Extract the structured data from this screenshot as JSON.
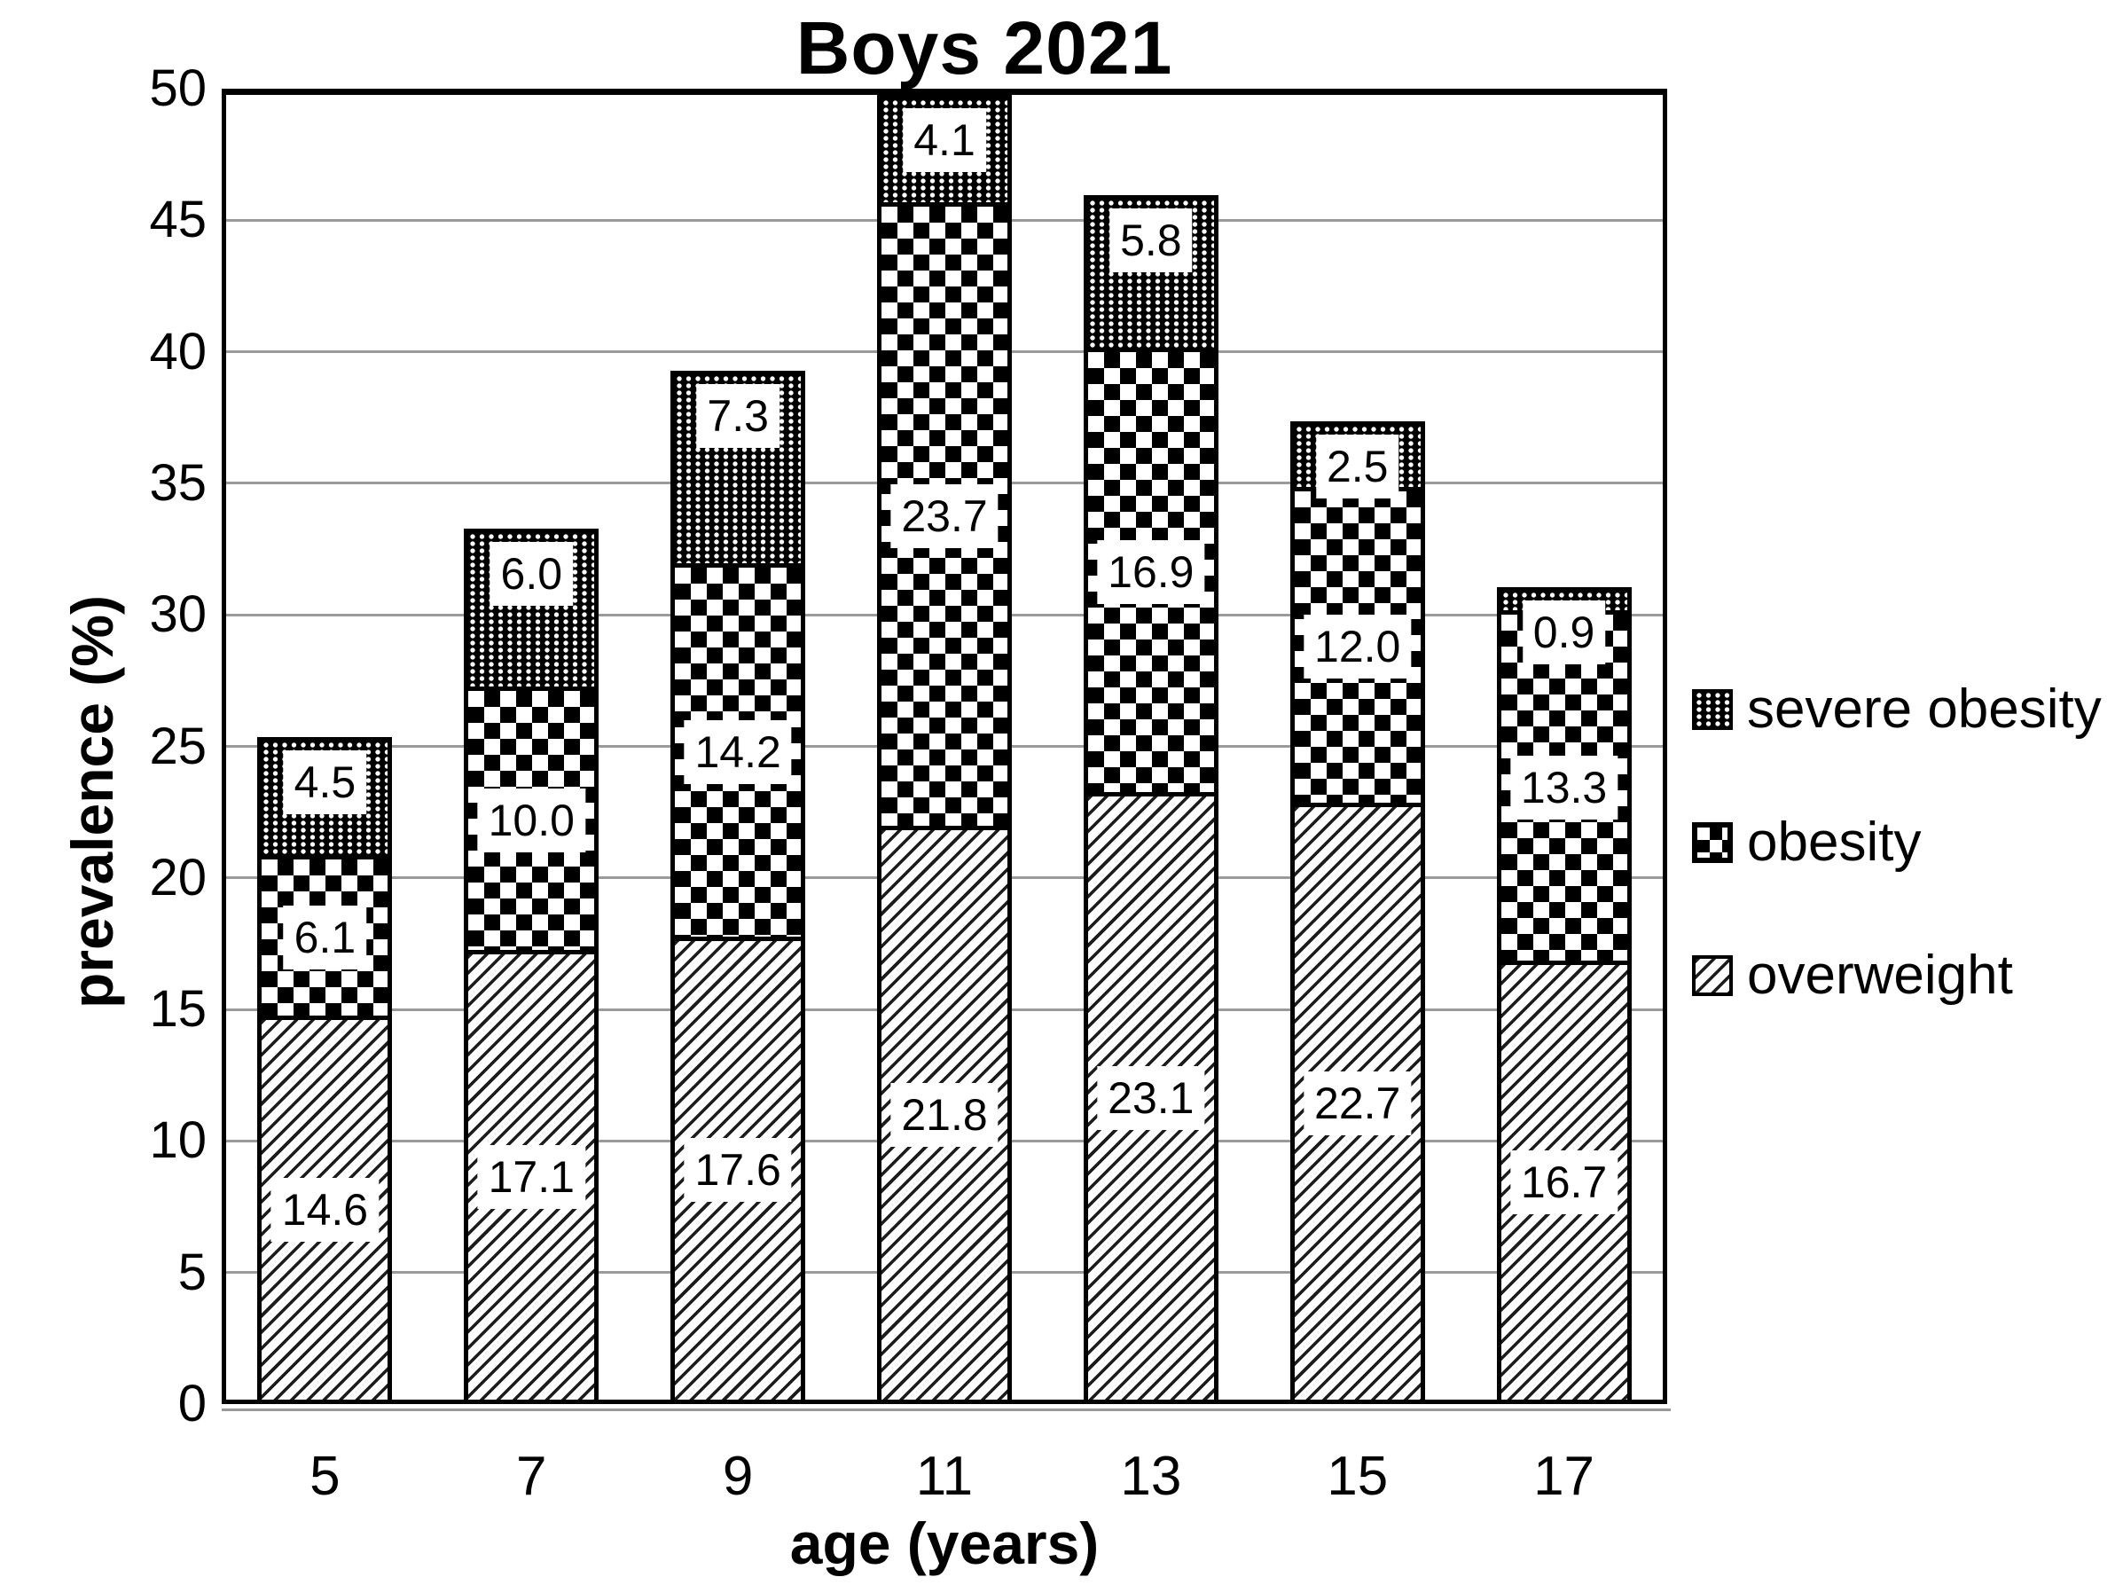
{
  "title": "Boys 2021",
  "axes": {
    "y_label": "prevalence (%)",
    "x_label": "age (years)",
    "y_ticks": [
      0,
      5,
      10,
      15,
      20,
      25,
      30,
      35,
      40,
      45,
      50
    ],
    "x_ticks": [
      "5",
      "7",
      "9",
      "11",
      "13",
      "15",
      "17"
    ]
  },
  "legend": {
    "position": "right",
    "items": [
      {
        "label": "severe obesity",
        "pattern": "fine-dot-grid"
      },
      {
        "label": "obesity",
        "pattern": "checkerboard"
      },
      {
        "label": "overweight",
        "pattern": "diagonal-hatch"
      }
    ]
  },
  "chart_data": {
    "type": "bar",
    "stacked": true,
    "title": "Boys 2021",
    "xlabel": "age (years)",
    "ylabel": "prevalence (%)",
    "ylim": [
      0,
      50
    ],
    "y_tick_step": 5,
    "grid": true,
    "legend_position": "right",
    "categories": [
      "5",
      "7",
      "9",
      "11",
      "13",
      "15",
      "17"
    ],
    "series": [
      {
        "name": "overweight",
        "pattern": "diagonal-hatch",
        "values": [
          14.6,
          17.1,
          17.6,
          21.8,
          23.1,
          22.7,
          16.7
        ],
        "labels": [
          "14.6",
          "17.1",
          "17.6",
          "21.8",
          "23.1",
          "22.7",
          "16.7"
        ]
      },
      {
        "name": "obesity",
        "pattern": "checkerboard",
        "values": [
          6.1,
          10.0,
          14.2,
          23.7,
          16.9,
          12.0,
          13.3
        ],
        "labels": [
          "6.1",
          "10.0",
          "14.2",
          "23.7",
          "16.9",
          "12.0",
          "13.3"
        ]
      },
      {
        "name": "severe obesity",
        "pattern": "fine-dot-grid",
        "values": [
          4.5,
          6.0,
          7.3,
          4.1,
          5.8,
          2.5,
          0.9
        ],
        "labels": [
          "4.5",
          "6.0",
          "7.3",
          "4.1",
          "5.8",
          "2.5",
          "0.9"
        ]
      }
    ],
    "totals": [
      25.2,
      33.1,
      39.1,
      49.6,
      45.8,
      37.2,
      30.9
    ],
    "colors": {
      "foreground": "#000000",
      "background": "#ffffff",
      "gridline": "#9a9a9a"
    }
  }
}
